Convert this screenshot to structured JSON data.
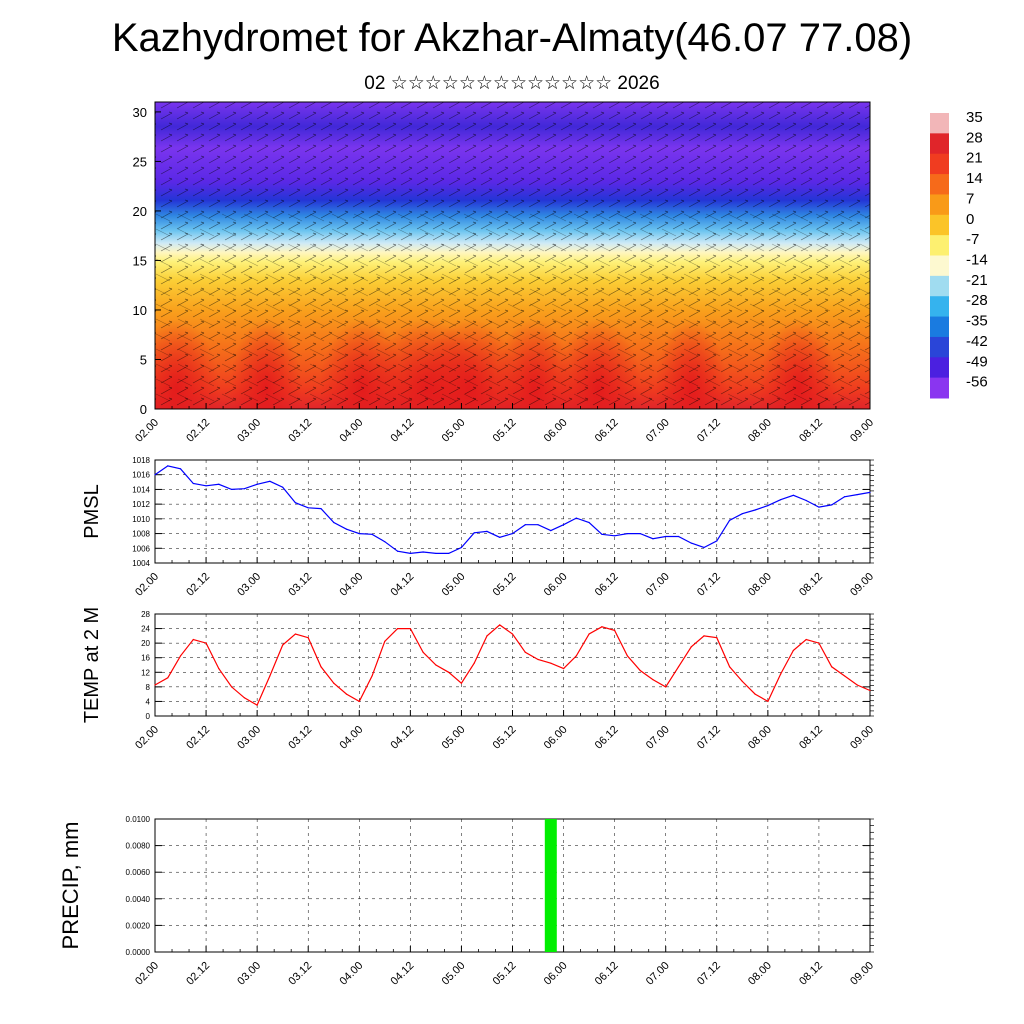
{
  "title": "Kazhydromet for Akzhar-Almaty(46.07 77.08)",
  "subtitle": "02 ☆☆☆☆☆☆☆☆☆☆☆☆☆ 2026",
  "time_labels": [
    "02.00",
    "02.12",
    "03.00",
    "03.12",
    "04.00",
    "04.12",
    "05.00",
    "05.12",
    "06.00",
    "06.12",
    "07.00",
    "07.12",
    "08.00",
    "08.12",
    "09.00"
  ],
  "chart_data": [
    {
      "type": "heatmap",
      "name": "temperature-wind-cross-section",
      "ylabel": "",
      "ylim": [
        0,
        31
      ],
      "yticks": [
        0,
        5,
        10,
        15,
        20,
        25,
        30
      ],
      "x_categories": [
        "02.00",
        "02.12",
        "03.00",
        "03.12",
        "04.00",
        "04.12",
        "05.00",
        "05.12",
        "06.00",
        "06.12",
        "07.00",
        "07.12",
        "08.00",
        "08.12",
        "09.00"
      ],
      "colorbar": {
        "labels": [
          "35",
          "28",
          "21",
          "14",
          "7",
          "0",
          "-7",
          "-14",
          "-21",
          "-28",
          "-35",
          "-42",
          "-49",
          "-56"
        ],
        "colors": [
          "#f2b6b8",
          "#e0252a",
          "#f03c20",
          "#f66a1a",
          "#f99a18",
          "#fbc428",
          "#fdf070",
          "#fdf9d0",
          "#a0dcf0",
          "#35b3ee",
          "#1a7be0",
          "#2a45d8",
          "#4b20e0",
          "#8a35f0"
        ]
      }
    },
    {
      "type": "line",
      "name": "pmsl",
      "ylabel": "PMSL",
      "ylim": [
        1004,
        1018
      ],
      "yticks": [
        1004,
        1006,
        1008,
        1010,
        1012,
        1014,
        1016,
        1018
      ],
      "color": "#0000ff",
      "x": [
        0,
        3,
        6,
        9,
        12,
        15,
        18,
        21,
        24,
        27,
        30,
        33,
        36,
        39,
        42,
        45,
        48,
        51,
        54,
        57,
        60,
        63,
        66,
        69,
        72,
        75,
        78,
        81,
        84,
        87,
        90,
        93,
        96,
        99,
        102,
        105,
        108,
        111,
        114,
        117,
        120,
        123,
        126,
        129,
        132,
        135,
        138,
        141,
        144,
        147,
        150,
        153,
        156,
        159,
        162,
        165,
        168
      ],
      "values": [
        1016.0,
        1017.2,
        1016.8,
        1014.8,
        1014.5,
        1014.7,
        1014.0,
        1014.1,
        1014.7,
        1015.1,
        1014.3,
        1012.2,
        1011.5,
        1011.4,
        1009.5,
        1008.6,
        1008.0,
        1007.9,
        1006.9,
        1005.6,
        1005.3,
        1005.5,
        1005.3,
        1005.3,
        1006.1,
        1008.1,
        1008.3,
        1007.5,
        1008.0,
        1009.2,
        1009.2,
        1008.4,
        1009.2,
        1010.1,
        1009.5,
        1007.9,
        1007.7,
        1008.0,
        1008.0,
        1007.3,
        1007.6,
        1007.6,
        1006.7,
        1006.1,
        1007.0,
        1009.8,
        1010.7,
        1011.2,
        1011.8,
        1012.6,
        1013.2,
        1012.5,
        1011.6,
        1011.9,
        1013.0,
        1013.3,
        1013.6
      ]
    },
    {
      "type": "line",
      "name": "temp-2m",
      "ylabel": "TEMP at 2 M",
      "ylim": [
        0,
        28
      ],
      "yticks": [
        0,
        4,
        8,
        12,
        16,
        20,
        24,
        28
      ],
      "color": "#ff0000",
      "x": [
        0,
        3,
        6,
        9,
        12,
        15,
        18,
        21,
        24,
        27,
        30,
        33,
        36,
        39,
        42,
        45,
        48,
        51,
        54,
        57,
        60,
        63,
        66,
        69,
        72,
        75,
        78,
        81,
        84,
        87,
        90,
        93,
        96,
        99,
        102,
        105,
        108,
        111,
        114,
        117,
        120,
        123,
        126,
        129,
        132,
        135,
        138,
        141,
        144,
        147,
        150,
        153,
        156,
        159,
        162,
        165,
        168
      ],
      "values": [
        8.5,
        10.5,
        16.5,
        21.0,
        20.0,
        13.0,
        8.0,
        5.0,
        3.0,
        11.0,
        19.5,
        22.5,
        21.5,
        13.5,
        9.0,
        6.0,
        4.0,
        11.0,
        20.5,
        24.0,
        24.0,
        17.5,
        14.0,
        12.0,
        9.0,
        14.5,
        22.0,
        25.0,
        22.5,
        17.5,
        15.5,
        14.5,
        13.0,
        16.5,
        22.5,
        24.5,
        23.5,
        16.5,
        12.5,
        10.0,
        8.0,
        13.5,
        19.0,
        22.0,
        21.5,
        13.5,
        9.5,
        6.0,
        4.0,
        11.5,
        18.0,
        21.0,
        20.0,
        13.5,
        11.0,
        8.5,
        7.0
      ]
    },
    {
      "type": "bar",
      "name": "precip",
      "ylabel": "PRECIP, mm",
      "ylim": [
        0,
        0.01
      ],
      "yticks": [
        "0.0000",
        "0.0020",
        "0.0040",
        "0.0060",
        "0.0080",
        "0.0100"
      ],
      "color": "#00ee00",
      "x": [
        93
      ],
      "values": [
        0.01
      ]
    }
  ]
}
